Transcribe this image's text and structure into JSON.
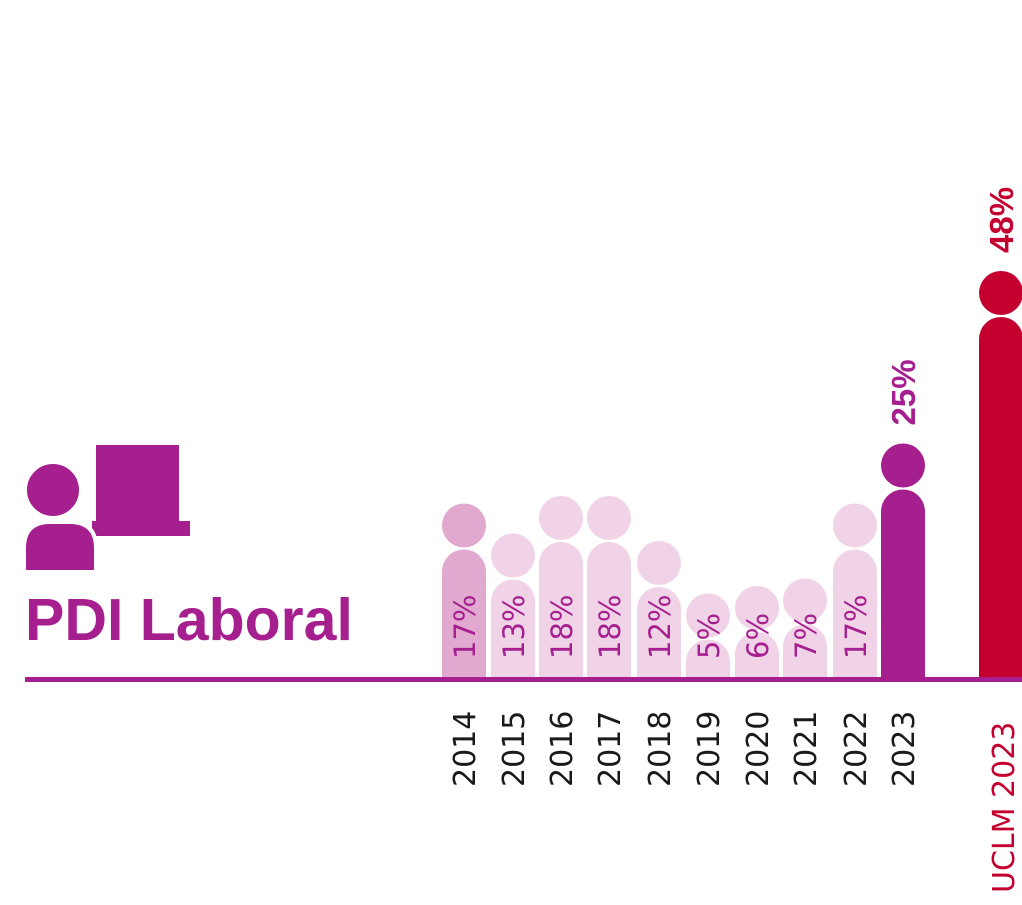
{
  "title": "PDI Laboral",
  "colors": {
    "primary": "#A61F8F",
    "highlight": "#C4002F",
    "light": "#F1D3E8",
    "light_alt": "#E2A9D0",
    "axis": "#A61F8F",
    "year_text": "#1a1a1a"
  },
  "icon": "teacher-at-board-icon",
  "chart_data": {
    "type": "bar",
    "title": "PDI Laboral",
    "categories": [
      "2014",
      "2015",
      "2016",
      "2017",
      "2018",
      "2019",
      "2020",
      "2021",
      "2022",
      "2023",
      "UCLM 2023"
    ],
    "values": [
      17,
      13,
      18,
      18,
      12,
      5,
      6,
      7,
      17,
      25,
      48
    ],
    "value_labels": [
      "17%",
      "13%",
      "18%",
      "18%",
      "12%",
      "5%",
      "6%",
      "7%",
      "17%",
      "25%",
      "48%"
    ],
    "compare_label": {
      "prefix": "UCLM",
      "year": "2023"
    },
    "unit": "%",
    "xlabel": "",
    "ylabel": "",
    "grid": false
  }
}
